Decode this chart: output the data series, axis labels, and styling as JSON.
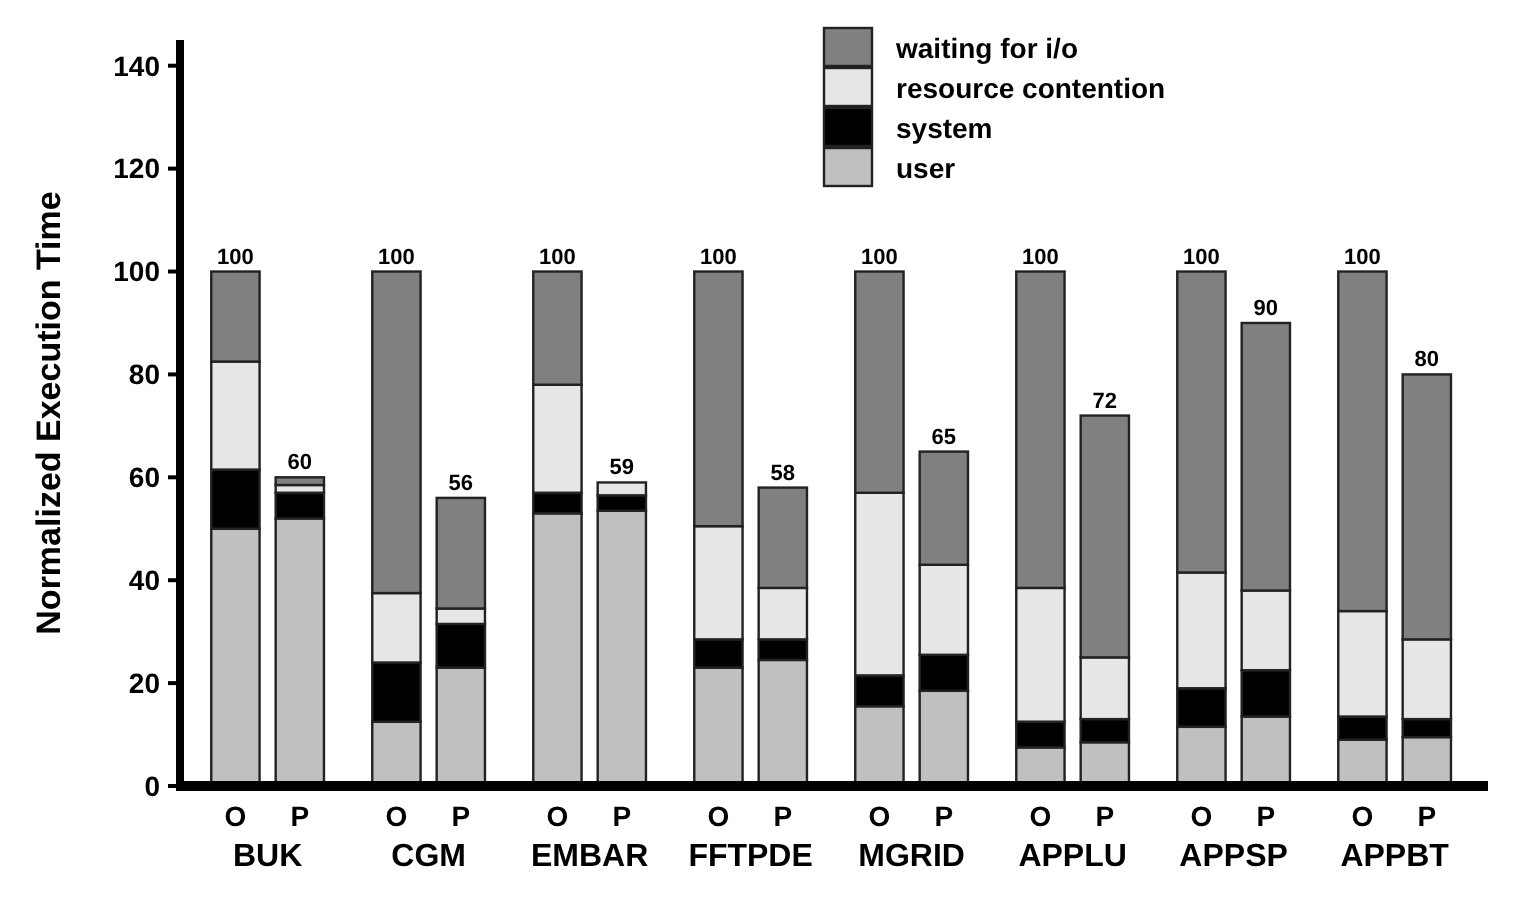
{
  "chart_data": {
    "type": "bar",
    "stacked": true,
    "ylabel": "Normalized Execution Time",
    "categories": [
      "O",
      "P",
      "O",
      "P",
      "O",
      "P",
      "O",
      "P",
      "O",
      "P",
      "O",
      "P",
      "O",
      "P",
      "O",
      "P"
    ],
    "annotations": [
      "BUK",
      "CGM",
      "EMBAR",
      "FFTPDE",
      "MGRID",
      "APPLU",
      "APPSP",
      "APPBT"
    ],
    "series": [
      {
        "name": "user",
        "color": "#c0c0c0",
        "values": [
          50,
          52,
          12.5,
          23,
          53,
          53.5,
          23,
          24.5,
          15.5,
          18.5,
          7.5,
          8.5,
          11.5,
          13.5,
          9,
          9.5
        ]
      },
      {
        "name": "system",
        "color": "#000000",
        "values": [
          11.5,
          5,
          11.5,
          8.5,
          4,
          3,
          5.5,
          4,
          6,
          7,
          5,
          4.5,
          7.5,
          9,
          4.5,
          3.5
        ]
      },
      {
        "name": "resource contention",
        "color": "#e6e6e6",
        "values": [
          21,
          1.5,
          13.5,
          3,
          21,
          2.5,
          22,
          10,
          35.5,
          17.5,
          26,
          12,
          22.5,
          15.5,
          20.5,
          15.5
        ]
      },
      {
        "name": "waiting for i/o",
        "color": "#808080",
        "values": [
          17.5,
          1.5,
          62.5,
          21.5,
          22,
          0,
          49.5,
          19.5,
          43,
          22,
          61.5,
          47,
          58.5,
          52,
          66,
          51.5
        ]
      }
    ],
    "totals": [
      "100",
      "60",
      "100",
      "56",
      "100",
      "59",
      "100",
      "58",
      "100",
      "65",
      "100",
      "72",
      "100",
      "90",
      "100",
      "80"
    ],
    "ylim": [
      0,
      145
    ],
    "yticks": [
      0,
      20,
      40,
      60,
      80,
      100,
      120,
      140
    ],
    "legend": "top",
    "grid": false
  }
}
